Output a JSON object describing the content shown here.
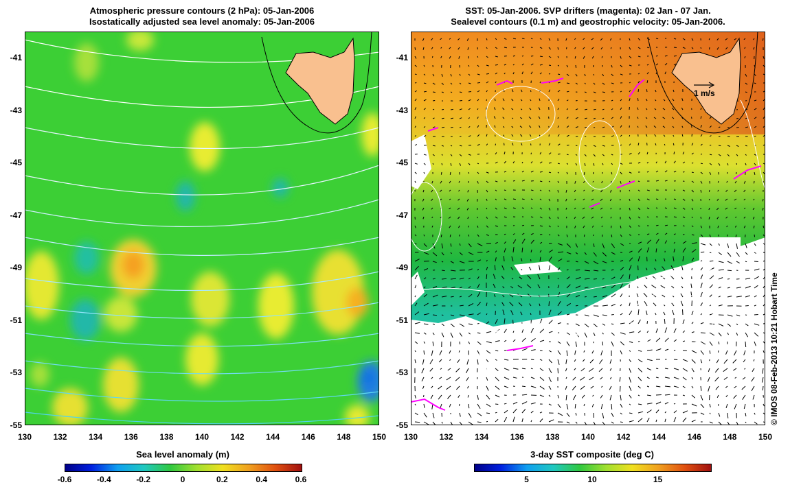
{
  "left_panel": {
    "title_line1": "Atmospheric pressure contours (2 hPa): 05-Jan-2006",
    "title_line2": "Isostatically adjusted sea level anomaly: 05-Jan-2006",
    "colorbar_title": "Sea level anomaly (m)",
    "colorbar_ticks": [
      "-0.6",
      "-0.4",
      "-0.2",
      "0",
      "0.2",
      "0.4",
      "0.6"
    ],
    "colorbar_range": [
      -0.6,
      0.6
    ]
  },
  "right_panel": {
    "title_line1": "SST: 05-Jan-2006. SVP drifters (magenta): 02 Jan - 07 Jan.",
    "title_line2": "Sealevel contours (0.1 m) and geostrophic velocity: 05-Jan-2006.",
    "colorbar_title": "3-day SST composite (deg C)",
    "colorbar_ticks": [
      "5",
      "10",
      "15"
    ],
    "colorbar_range": [
      1,
      19
    ],
    "scale_label": "1 m/s"
  },
  "axes": {
    "lon_ticks": [
      "130",
      "132",
      "134",
      "136",
      "138",
      "140",
      "142",
      "144",
      "146",
      "148",
      "150"
    ],
    "lat_ticks": [
      "-41",
      "-43",
      "-45",
      "-47",
      "-49",
      "-51",
      "-53",
      "-55"
    ],
    "lon_range": [
      130,
      150
    ],
    "lat_range": [
      -40,
      -55
    ]
  },
  "credit": "© IMOS 08-Feb-2013 10:21 Hobart Time",
  "colors": {
    "land": "#f9c08f",
    "sla_background": "#2ecc2e",
    "sst_warm": "#f0a020",
    "drifters": "#ff00ff"
  }
}
